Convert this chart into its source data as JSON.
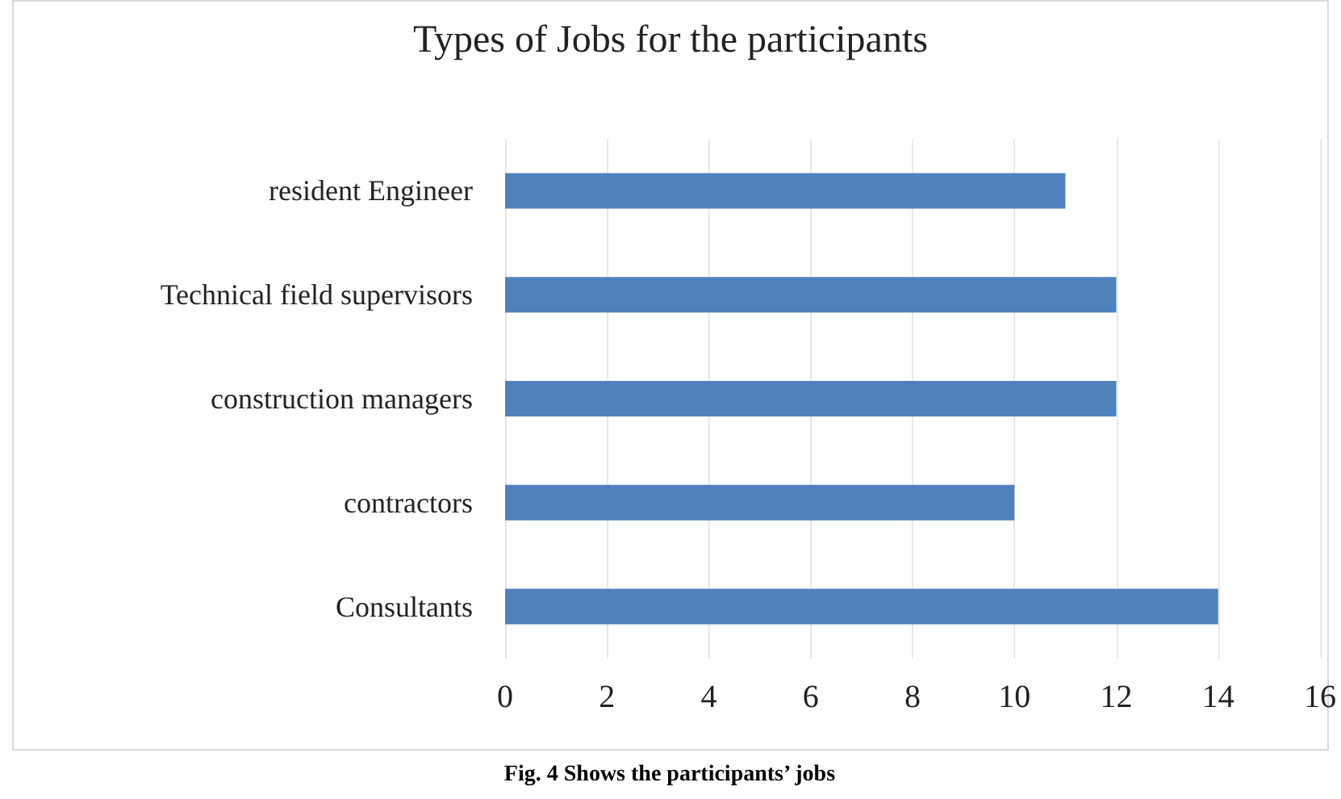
{
  "chart_data": {
    "type": "bar",
    "orientation": "horizontal",
    "title": "Types of Jobs for the participants",
    "categories": [
      "resident Engineer",
      "Technical field supervisors",
      "construction managers",
      "contractors",
      "Consultants"
    ],
    "values": [
      11,
      12,
      12,
      10,
      14
    ],
    "color": "#4f81bd",
    "xlim": [
      0,
      16
    ],
    "xticks": [
      0,
      2,
      4,
      6,
      8,
      10,
      12,
      14,
      16
    ],
    "grid": "x",
    "annotations": [
      "Fig. 4 Shows the participants’ jobs"
    ]
  }
}
